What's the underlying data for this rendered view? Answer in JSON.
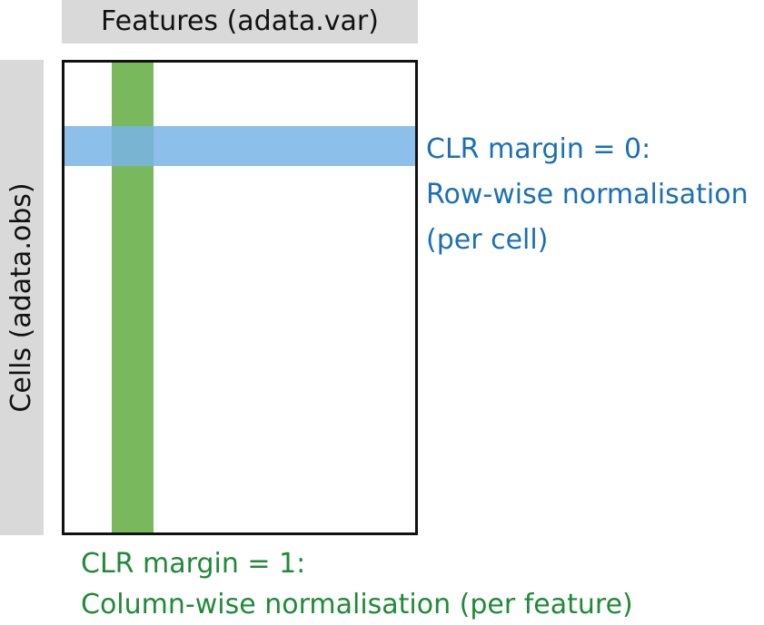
{
  "features_label": "Features (adata.var)",
  "cells_label": "Cells (adata.obs)",
  "row_note": {
    "line1": "CLR margin = 0:",
    "line2": "Row-wise normalisation",
    "line3": "(per cell)"
  },
  "column_note": {
    "line1": "CLR margin = 1:",
    "line2": "Column-wise normalisation (per feature)"
  },
  "colors": {
    "row_band": "#79b5e6",
    "column_band": "#7ab85e",
    "row_text": "#1b6fb5",
    "column_text": "#1f8a37",
    "label_box": "#d9d9d9",
    "matrix_border": "#111111"
  }
}
